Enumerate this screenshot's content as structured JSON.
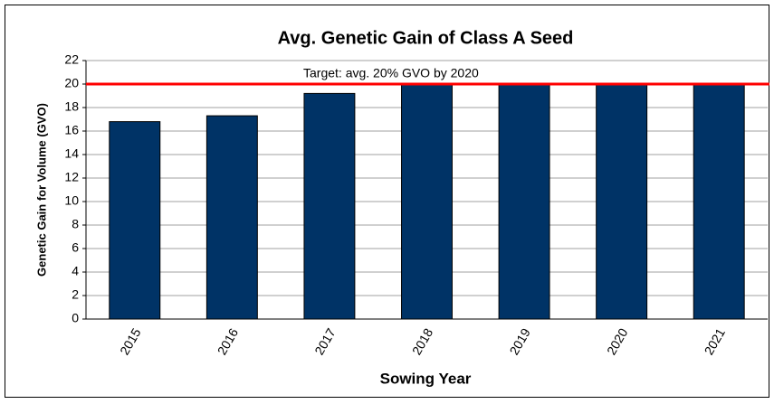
{
  "chart_data": {
    "type": "bar",
    "title": "Avg. Genetic Gain of Class A Seed",
    "x_label": "Sowing Year",
    "y_label": "Genetic Gain for Volume  (GVO)",
    "categories": [
      "2015",
      "2016",
      "2017",
      "2018",
      "2019",
      "2020",
      "2021"
    ],
    "values": [
      16.8,
      17.3,
      19.2,
      20,
      20,
      20,
      20
    ],
    "color": "#003366",
    "ylim": [
      0,
      22
    ],
    "yticks": [
      0,
      2,
      4,
      6,
      8,
      10,
      12,
      14,
      16,
      18,
      20,
      22
    ],
    "grid": true,
    "target": {
      "value": 20,
      "label": "Target: avg. 20% GVO by 2020",
      "color": "#ff0000"
    }
  }
}
